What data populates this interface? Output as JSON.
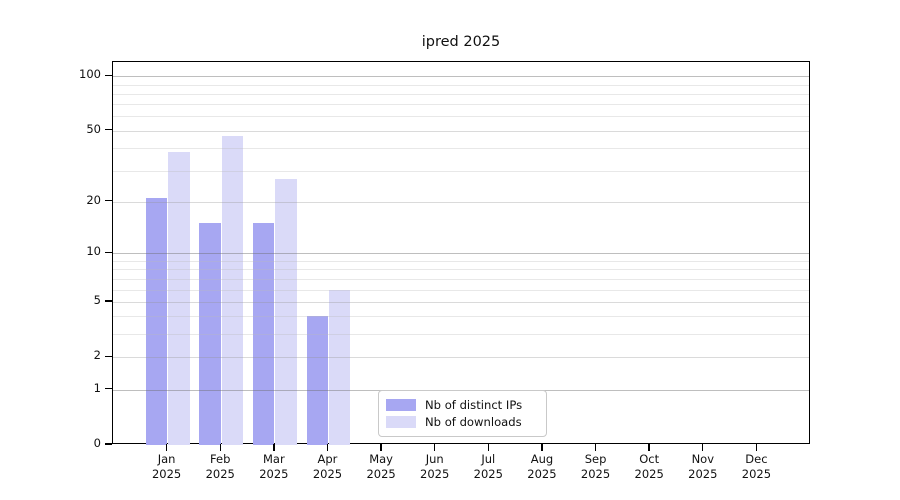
{
  "title": "ipred 2025",
  "chart_data": {
    "type": "bar",
    "title": "ipred 2025",
    "y_scale": "log1p",
    "grid": true,
    "legend_position": "bottom-center",
    "months": [
      "Jan",
      "Feb",
      "Mar",
      "Apr",
      "May",
      "Jun",
      "Jul",
      "Aug",
      "Sep",
      "Oct",
      "Nov",
      "Dec"
    ],
    "year_label": "2025",
    "categories": [
      "Jan 2025",
      "Feb 2025",
      "Mar 2025",
      "Apr 2025",
      "May 2025",
      "Jun 2025",
      "Jul 2025",
      "Aug 2025",
      "Sep 2025",
      "Oct 2025",
      "Nov 2025",
      "Dec 2025"
    ],
    "series": [
      {
        "name": "Nb of distinct IPs",
        "color": "#a7a7f2",
        "values": [
          21,
          15,
          15,
          4,
          0,
          0,
          0,
          0,
          0,
          0,
          0,
          0
        ]
      },
      {
        "name": "Nb of downloads",
        "color": "#dadaf8",
        "values": [
          38,
          47,
          27,
          6,
          0,
          0,
          0,
          0,
          0,
          0,
          0,
          0
        ]
      }
    ],
    "y_ticks": [
      0,
      1,
      2,
      5,
      10,
      20,
      50,
      100
    ],
    "y_tick_labels": [
      "0",
      "1",
      "2",
      "5",
      "10",
      "20",
      "50",
      "100"
    ],
    "y_minor_gridlines": [
      3,
      4,
      6,
      7,
      8,
      9,
      30,
      40,
      60,
      70,
      80,
      90
    ],
    "y_major_gridlines": [
      1,
      10,
      100
    ],
    "y_mid_gridlines": [
      2,
      5,
      20,
      50
    ],
    "ylim": [
      0,
      120
    ]
  },
  "colors": {
    "background": "#ffffff",
    "spine": "#000000",
    "major_grid": "#b9b9b9",
    "minor_grid": "#e9e9e9",
    "text": "#111111",
    "legend_border": "#c9c9c9"
  }
}
